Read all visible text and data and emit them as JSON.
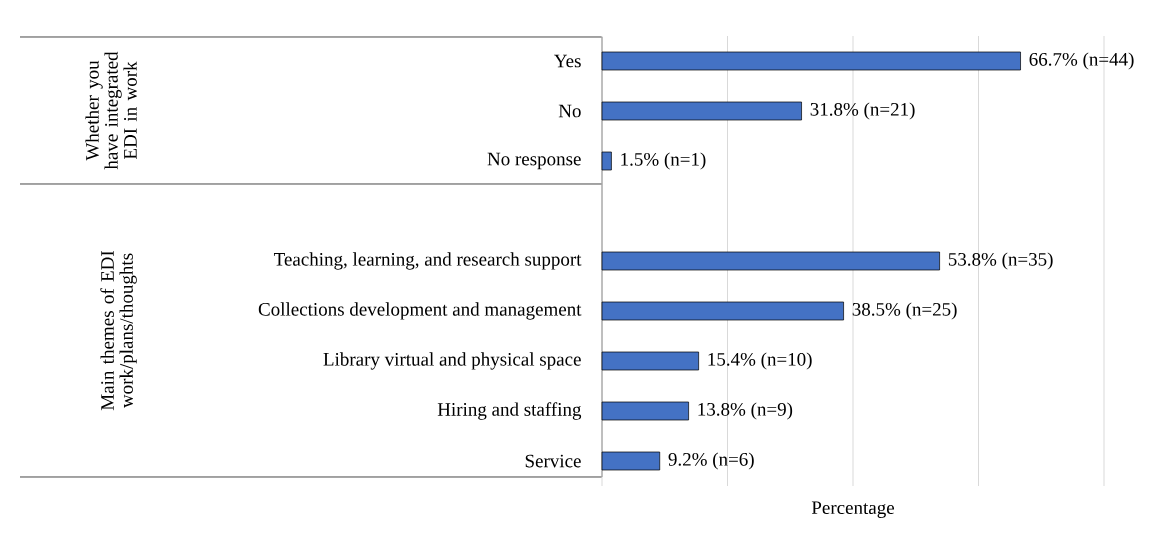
{
  "chart_data": {
    "type": "bar",
    "orientation": "horizontal",
    "xlabel": "Percentage",
    "categories": [
      "Yes",
      "No",
      "No response",
      null,
      "Teaching, learning, and research support",
      "Collections development and management",
      "Library virtual and physical space",
      "Hiring and staffing",
      "Service"
    ],
    "values": [
      66.7,
      31.8,
      1.5,
      null,
      53.8,
      38.5,
      15.4,
      13.8,
      9.2
    ],
    "value_labels": [
      "66.7% (n=44)",
      "31.8% (n=21)",
      "1.5% (n=1)",
      null,
      "53.8% (n=35)",
      "38.5% (n=25)",
      "15.4% (n=10)",
      "13.8% (n=9)",
      "9.2% (n=6)"
    ],
    "color": "#4472c4",
    "xlim": [
      0,
      80
    ],
    "xticks": [
      {
        "value": 0,
        "label": null
      },
      {
        "value": 20,
        "label": null
      },
      {
        "value": 40,
        "label": null
      },
      {
        "value": 60,
        "label": null
      },
      {
        "value": 80,
        "label": null
      }
    ],
    "grid": "x",
    "tick_labels": "y",
    "annotations": [
      "Whether you have integrated EDI in work",
      "Main themes of EDI work/plans/thoughts"
    ]
  }
}
